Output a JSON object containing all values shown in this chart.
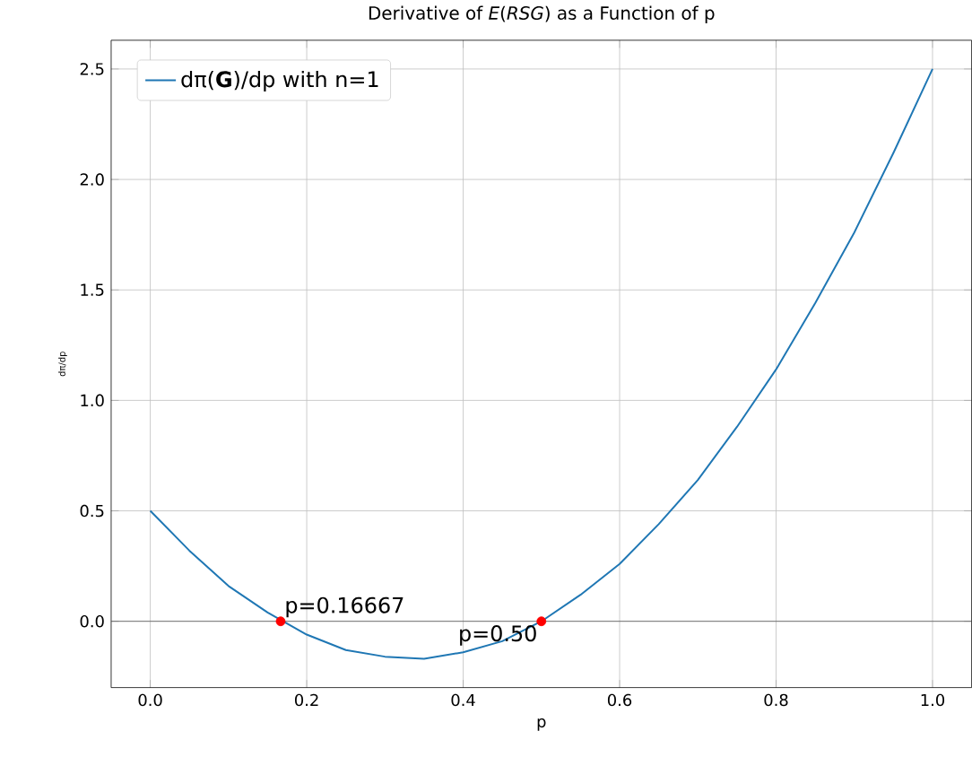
{
  "chart_data": {
    "type": "line",
    "title": "Derivative of *E*(*RSG*) as a Function of p",
    "xlabel": "p",
    "ylabel": "dπ/dp",
    "xlim": [
      -0.05,
      1.05
    ],
    "ylim": [
      -0.3,
      2.63
    ],
    "xticks": [
      {
        "value": 0,
        "label": "0.0"
      },
      {
        "value": 0.2,
        "label": "0.2"
      },
      {
        "value": 0.4,
        "label": "0.4"
      },
      {
        "value": 0.6,
        "label": "0.6"
      },
      {
        "value": 0.8,
        "label": "0.8"
      },
      {
        "value": 1,
        "label": "1.0"
      }
    ],
    "yticks": [
      {
        "value": 0,
        "label": "0.0"
      },
      {
        "value": 0.5,
        "label": "0.5"
      },
      {
        "value": 1,
        "label": "1.0"
      },
      {
        "value": 1.5,
        "label": "1.5"
      },
      {
        "value": 2,
        "label": "2.0"
      },
      {
        "value": 2.5,
        "label": "2.5"
      }
    ],
    "grid": true,
    "legend": "top left",
    "marker": "none",
    "line_style": "solid",
    "ref_lines": [
      {
        "axis": "y",
        "value": 0,
        "color": "#555555"
      }
    ],
    "series": [
      {
        "name": "dπ(**G**)/dp with n=1",
        "color": "#1f77b4",
        "x": [
          0,
          0.05,
          0.1,
          0.15,
          0.2,
          0.25,
          0.3,
          0.35,
          0.4,
          0.45,
          0.5,
          0.55,
          0.6,
          0.65,
          0.7,
          0.75,
          0.8,
          0.85,
          0.9,
          0.95,
          1
        ],
        "values": [
          0.5,
          0.32,
          0.16,
          0.04,
          -0.06,
          -0.13,
          -0.16,
          -0.17,
          -0.14,
          -0.09,
          0,
          0.12,
          0.26,
          0.44,
          0.64,
          0.88,
          1.14,
          1.44,
          1.76,
          2.12,
          2.5
        ]
      },
      {
        "type": "scatter",
        "marker": "circle",
        "color": "#ff0000",
        "x": [
          0.16667,
          0.5
        ],
        "values": [
          0,
          0
        ]
      }
    ],
    "annotations": [
      {
        "text": "p=0.16667",
        "x": 0.16667,
        "y": 0
      },
      {
        "text": "p=0.50",
        "x": 0.5,
        "y": 0
      }
    ]
  }
}
